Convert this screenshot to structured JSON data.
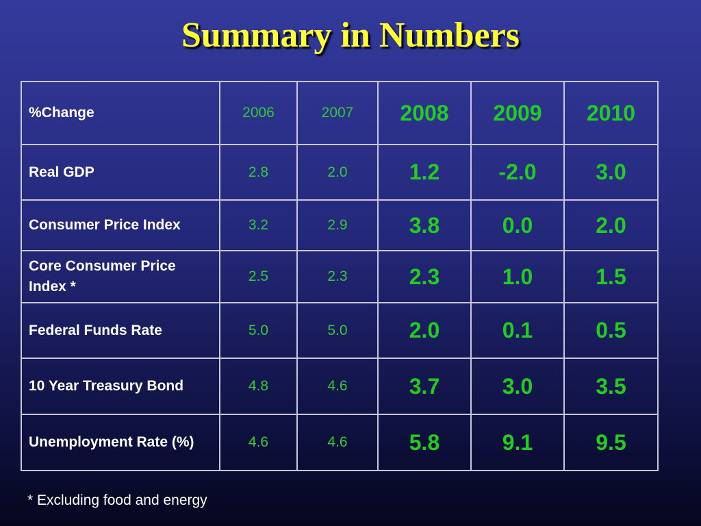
{
  "title": "Summary  in Numbers",
  "table": {
    "header": [
      "%Change",
      "2006",
      "2007",
      "2008",
      "2009",
      "2010"
    ],
    "rows": [
      [
        "Real GDP",
        "2.8",
        "2.0",
        "1.2",
        "-2.0",
        "3.0"
      ],
      [
        "Consumer Price Index",
        "3.2",
        "2.9",
        "3.8",
        "0.0",
        "2.0"
      ],
      [
        "Core Consumer Price Index *",
        "2.5",
        "2.3",
        "2.3",
        "1.0",
        "1.5"
      ],
      [
        "Federal Funds Rate",
        "5.0",
        "5.0",
        "2.0",
        "0.1",
        "0.5"
      ],
      [
        "10 Year Treasury Bond",
        "4.8",
        "4.6",
        "3.7",
        "3.0",
        "3.5"
      ],
      [
        "Unemployment Rate (%)",
        "4.6",
        "4.6",
        "5.8",
        "9.1",
        "9.5"
      ]
    ]
  },
  "footnote": "* Excluding food and energy"
}
